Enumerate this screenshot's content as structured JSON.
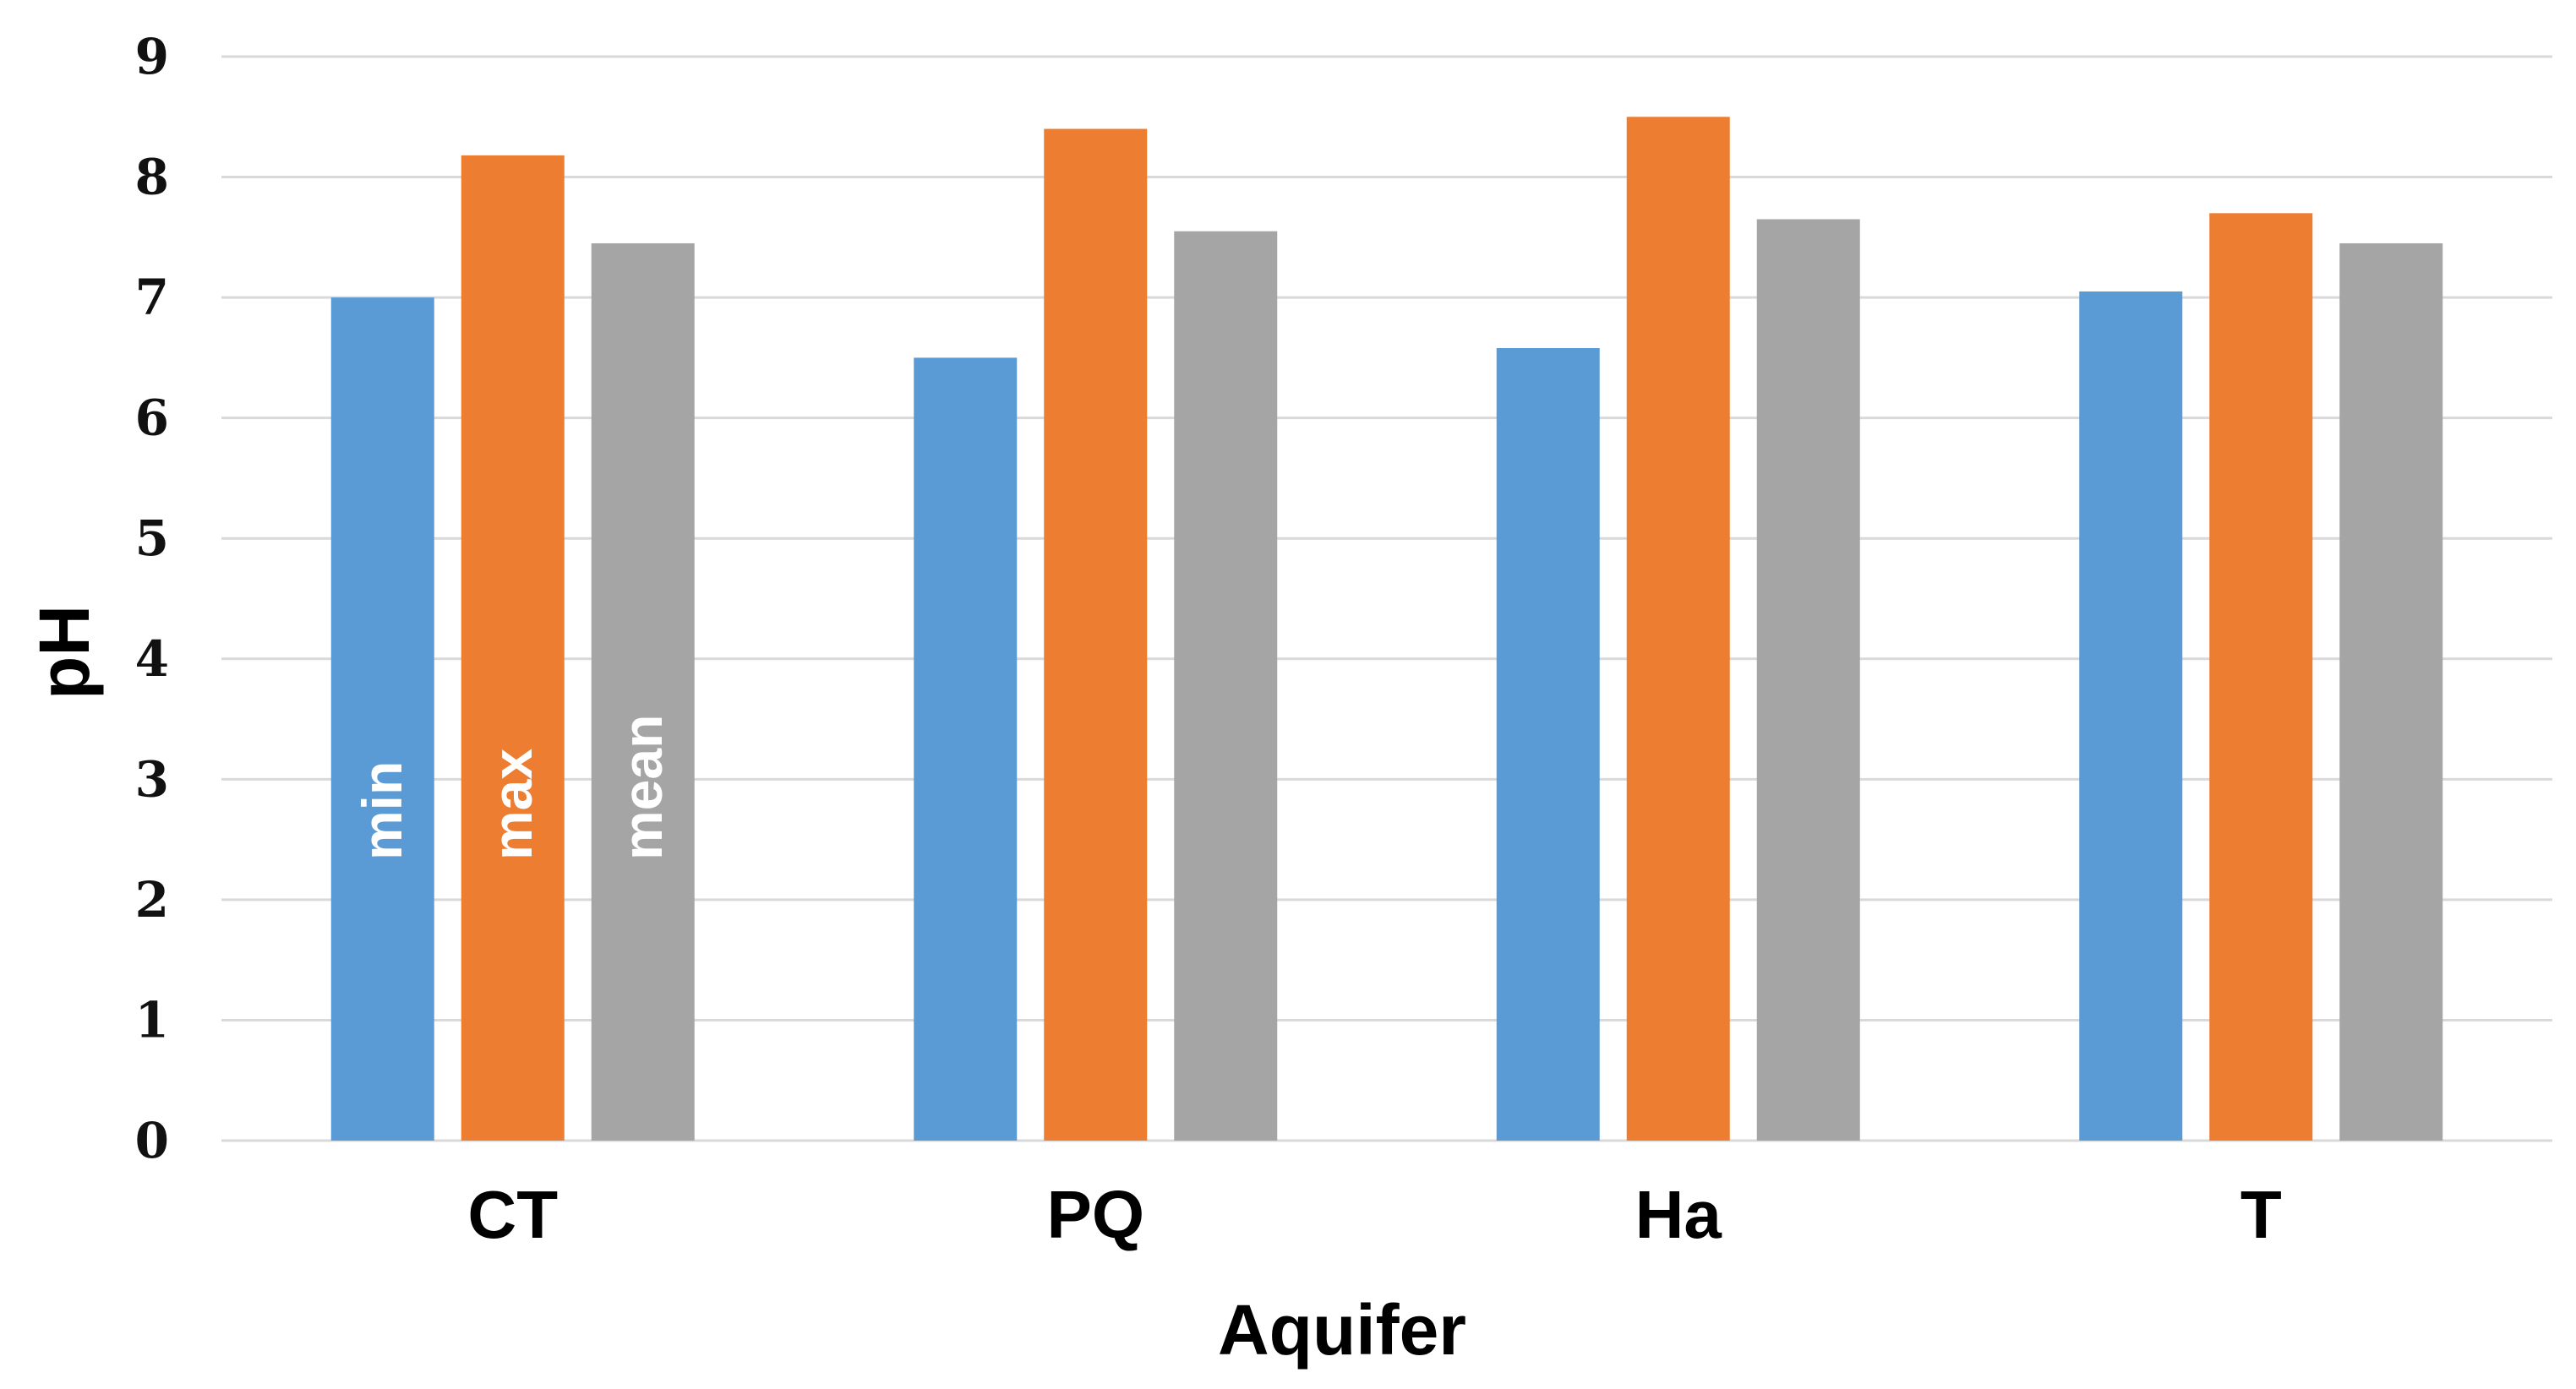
{
  "chart_data": {
    "type": "bar",
    "title": "",
    "xlabel": "Aquifer",
    "ylabel": "pH",
    "categories": [
      "CT",
      "PQ",
      "Ha",
      "T"
    ],
    "series": [
      {
        "name": "min",
        "values": [
          7.0,
          6.5,
          6.58,
          7.05
        ],
        "color": "#5b9bd5"
      },
      {
        "name": "max",
        "values": [
          8.18,
          8.4,
          8.5,
          7.7
        ],
        "color": "#ed7d31"
      },
      {
        "name": "mean",
        "values": [
          7.45,
          7.55,
          7.65,
          7.45
        ],
        "color": "#a5a5a5"
      }
    ],
    "ylim": [
      0,
      9
    ],
    "yticks": [
      "0",
      "1",
      "2",
      "3",
      "4",
      "5",
      "6",
      "7",
      "8",
      "9"
    ],
    "grid": true,
    "legend": "series names written vertically inside the first group of bars"
  }
}
